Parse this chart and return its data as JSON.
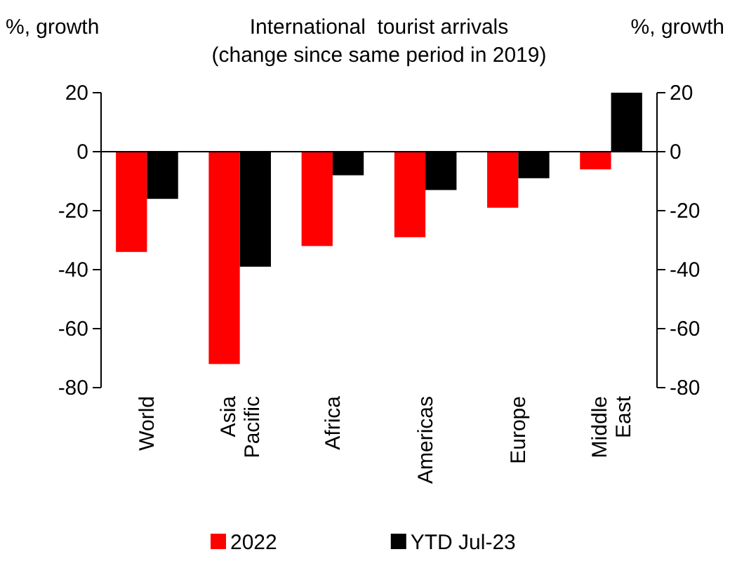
{
  "chart_data": {
    "type": "bar",
    "title": "International  tourist arrivals",
    "subtitle": "(change since same period in 2019)",
    "ylabel": "%, growth",
    "y2label": "%, growth",
    "categories": [
      "World",
      "Asia Pacific",
      "Africa",
      "Americas",
      "Europe",
      "Middle East"
    ],
    "series": [
      {
        "name": "2022",
        "color": "#ff0000",
        "values": [
          -34,
          -72,
          -32,
          -29,
          -19,
          -6
        ]
      },
      {
        "name": "YTD Jul-23",
        "color": "#000000",
        "values": [
          -16,
          -39,
          -8,
          -13,
          -9,
          20
        ]
      }
    ],
    "ylim": [
      -80,
      20
    ],
    "yticks": [
      -80,
      -60,
      -40,
      -20,
      0,
      20
    ],
    "y2lim": [
      -80,
      20
    ],
    "y2ticks": [
      -80,
      -60,
      -40,
      -20,
      0,
      20
    ],
    "ref_lines": [
      {
        "axis": "y",
        "value": 0,
        "color": "#000000"
      }
    ],
    "grid": false,
    "legend": "bottom"
  }
}
